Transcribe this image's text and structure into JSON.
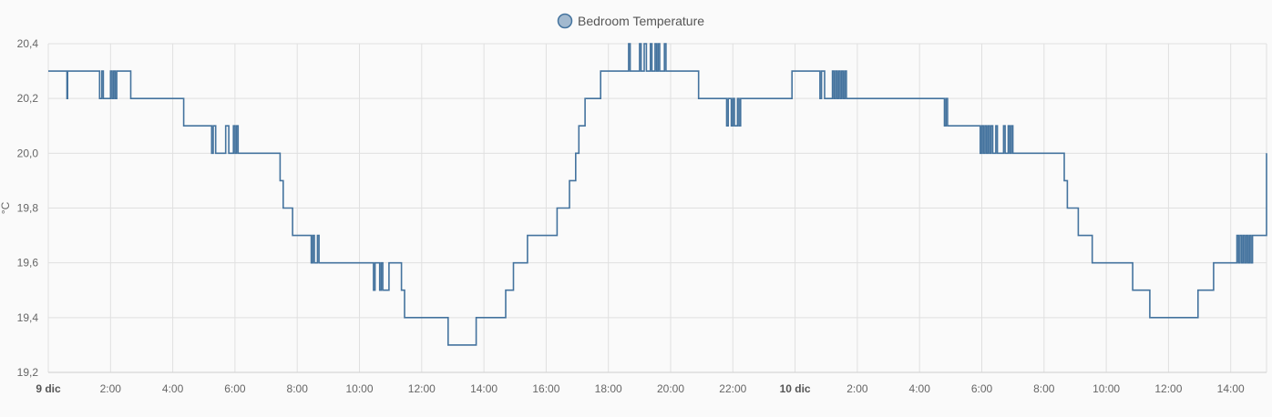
{
  "chart_data": {
    "type": "line",
    "step": true,
    "grid": true,
    "legend_position": "top-center",
    "ylabel": "°C",
    "ylim": [
      19.2,
      20.4
    ],
    "yticks": [
      "20,4",
      "20,2",
      "20,0",
      "19,8",
      "19,6",
      "19,4",
      "19,2"
    ],
    "ytick_values": [
      20.4,
      20.2,
      20.0,
      19.8,
      19.6,
      19.4,
      19.2
    ],
    "xlim_hours": [
      0,
      38.7
    ],
    "xticks": [
      {
        "label": "9 dic",
        "hour": 0,
        "bold": true
      },
      {
        "label": "2:00",
        "hour": 2
      },
      {
        "label": "4:00",
        "hour": 4
      },
      {
        "label": "6:00",
        "hour": 6
      },
      {
        "label": "8:00",
        "hour": 8
      },
      {
        "label": "10:00",
        "hour": 10
      },
      {
        "label": "12:00",
        "hour": 12
      },
      {
        "label": "14:00",
        "hour": 14
      },
      {
        "label": "16:00",
        "hour": 16
      },
      {
        "label": "18:00",
        "hour": 18
      },
      {
        "label": "20:00",
        "hour": 20
      },
      {
        "label": "22:00",
        "hour": 22
      },
      {
        "label": "10 dic",
        "hour": 24,
        "bold": true
      },
      {
        "label": "2:00",
        "hour": 26
      },
      {
        "label": "4:00",
        "hour": 28
      },
      {
        "label": "6:00",
        "hour": 30
      },
      {
        "label": "8:00",
        "hour": 32
      },
      {
        "label": "10:00",
        "hour": 34
      },
      {
        "label": "12:00",
        "hour": 36
      },
      {
        "label": "14:00",
        "hour": 38
      }
    ],
    "series": [
      {
        "name": "Bedroom Temperature",
        "color": "#44739e",
        "points": [
          [
            0.0,
            20.3
          ],
          [
            0.6,
            20.2
          ],
          [
            0.62,
            20.3
          ],
          [
            1.65,
            20.2
          ],
          [
            1.72,
            20.3
          ],
          [
            1.77,
            20.2
          ],
          [
            2.0,
            20.3
          ],
          [
            2.05,
            20.2
          ],
          [
            2.1,
            20.3
          ],
          [
            2.15,
            20.2
          ],
          [
            2.2,
            20.3
          ],
          [
            2.65,
            20.2
          ],
          [
            4.35,
            20.1
          ],
          [
            5.25,
            20.0
          ],
          [
            5.3,
            20.1
          ],
          [
            5.38,
            20.0
          ],
          [
            5.7,
            20.1
          ],
          [
            5.8,
            20.0
          ],
          [
            5.95,
            20.1
          ],
          [
            6.0,
            20.0
          ],
          [
            6.05,
            20.1
          ],
          [
            6.1,
            20.0
          ],
          [
            7.45,
            19.9
          ],
          [
            7.55,
            19.8
          ],
          [
            7.85,
            19.7
          ],
          [
            8.45,
            19.6
          ],
          [
            8.5,
            19.7
          ],
          [
            8.55,
            19.6
          ],
          [
            8.65,
            19.7
          ],
          [
            8.7,
            19.6
          ],
          [
            10.45,
            19.5
          ],
          [
            10.5,
            19.6
          ],
          [
            10.65,
            19.5
          ],
          [
            10.7,
            19.6
          ],
          [
            10.75,
            19.5
          ],
          [
            10.95,
            19.6
          ],
          [
            11.35,
            19.5
          ],
          [
            11.45,
            19.4
          ],
          [
            12.85,
            19.3
          ],
          [
            13.75,
            19.4
          ],
          [
            14.7,
            19.5
          ],
          [
            14.95,
            19.6
          ],
          [
            15.4,
            19.7
          ],
          [
            16.35,
            19.8
          ],
          [
            16.75,
            19.9
          ],
          [
            16.95,
            20.0
          ],
          [
            17.05,
            20.1
          ],
          [
            17.25,
            20.2
          ],
          [
            17.75,
            20.3
          ],
          [
            18.65,
            20.4
          ],
          [
            18.7,
            20.3
          ],
          [
            19.0,
            20.4
          ],
          [
            19.05,
            20.3
          ],
          [
            19.15,
            20.4
          ],
          [
            19.22,
            20.3
          ],
          [
            19.35,
            20.4
          ],
          [
            19.4,
            20.3
          ],
          [
            19.5,
            20.4
          ],
          [
            19.55,
            20.3
          ],
          [
            19.6,
            20.4
          ],
          [
            19.65,
            20.3
          ],
          [
            19.8,
            20.4
          ],
          [
            19.85,
            20.3
          ],
          [
            20.9,
            20.2
          ],
          [
            21.8,
            20.1
          ],
          [
            21.85,
            20.2
          ],
          [
            21.95,
            20.1
          ],
          [
            22.0,
            20.2
          ],
          [
            22.05,
            20.1
          ],
          [
            22.15,
            20.2
          ],
          [
            22.2,
            20.1
          ],
          [
            22.25,
            20.2
          ],
          [
            23.9,
            20.3
          ],
          [
            24.8,
            20.2
          ],
          [
            24.85,
            20.3
          ],
          [
            24.95,
            20.2
          ],
          [
            25.2,
            20.3
          ],
          [
            25.25,
            20.2
          ],
          [
            25.3,
            20.3
          ],
          [
            25.35,
            20.2
          ],
          [
            25.4,
            20.3
          ],
          [
            25.45,
            20.2
          ],
          [
            25.5,
            20.3
          ],
          [
            25.55,
            20.2
          ],
          [
            25.6,
            20.3
          ],
          [
            25.65,
            20.2
          ],
          [
            28.8,
            20.1
          ],
          [
            28.85,
            20.2
          ],
          [
            28.9,
            20.1
          ],
          [
            29.95,
            20.0
          ],
          [
            30.0,
            20.1
          ],
          [
            30.05,
            20.0
          ],
          [
            30.1,
            20.1
          ],
          [
            30.15,
            20.0
          ],
          [
            30.2,
            20.1
          ],
          [
            30.25,
            20.0
          ],
          [
            30.3,
            20.1
          ],
          [
            30.35,
            20.0
          ],
          [
            30.45,
            20.1
          ],
          [
            30.5,
            20.0
          ],
          [
            30.7,
            20.1
          ],
          [
            30.75,
            20.0
          ],
          [
            30.85,
            20.1
          ],
          [
            30.9,
            20.0
          ],
          [
            30.95,
            20.1
          ],
          [
            31.0,
            20.0
          ],
          [
            32.65,
            19.9
          ],
          [
            32.75,
            19.8
          ],
          [
            33.1,
            19.7
          ],
          [
            33.55,
            19.6
          ],
          [
            34.85,
            19.5
          ],
          [
            35.4,
            19.4
          ],
          [
            36.95,
            19.5
          ],
          [
            37.45,
            19.6
          ],
          [
            38.2,
            19.7
          ],
          [
            38.25,
            19.6
          ],
          [
            38.3,
            19.7
          ],
          [
            38.35,
            19.6
          ],
          [
            38.4,
            19.7
          ],
          [
            38.45,
            19.6
          ],
          [
            38.5,
            19.7
          ],
          [
            38.55,
            19.6
          ],
          [
            38.6,
            19.7
          ],
          [
            38.65,
            19.6
          ],
          [
            38.7,
            19.7
          ],
          [
            39.3,
            19.8
          ],
          [
            39.65,
            19.9
          ],
          [
            40.2,
            20.0
          ],
          [
            40.3,
            20.0
          ]
        ]
      }
    ]
  }
}
